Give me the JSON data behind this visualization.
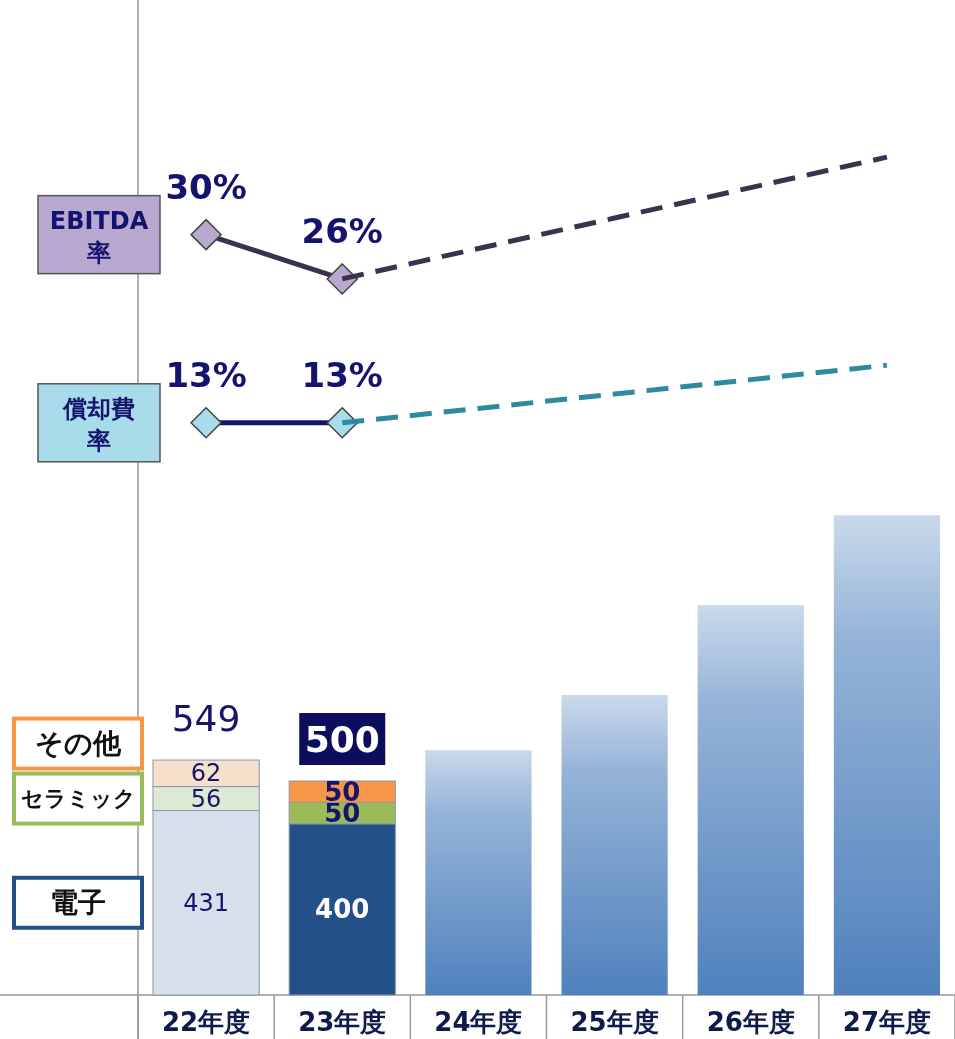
{
  "chart_data": {
    "type": "bar",
    "stacked": true,
    "categories": [
      "22年度",
      "23年度",
      "24年度",
      "25年度",
      "26年度",
      "27年度"
    ],
    "ylim": [
      0,
      2325
    ],
    "y2lim": [
      -38.7,
      51.2
    ],
    "series": [
      {
        "name": "電子",
        "values": [
          431,
          400,
          null,
          null,
          null,
          null
        ],
        "colors": [
          "#d6dfea",
          "#24508a",
          null,
          null,
          null,
          null
        ],
        "value_labels": [
          "431",
          "400",
          null,
          null,
          null,
          null
        ]
      },
      {
        "name": "セラミック",
        "values": [
          56,
          50,
          null,
          null,
          null,
          null
        ],
        "colors": [
          "#dfe8d2",
          "#9bbb59",
          null,
          null,
          null,
          null
        ],
        "value_labels": [
          "56",
          "50",
          null,
          null,
          null,
          null
        ]
      },
      {
        "name": "その他",
        "values": [
          62,
          50,
          null,
          null,
          null,
          null
        ],
        "colors": [
          "#f5e0cc",
          "#f79646",
          null,
          null,
          null,
          null
        ],
        "value_labels": [
          "62",
          "50",
          null,
          null,
          null,
          null
        ]
      },
      {
        "values": [
          null,
          null,
          572,
          701,
          911,
          1121
        ],
        "color": "#4f81bd"
      },
      {
        "name": "EBITDA率",
        "type": "line",
        "axis": "y2",
        "marker": "diamond",
        "line_style": "solid",
        "color": "#3d3150",
        "colors": [
          "#b9a9d0",
          "#b9a9d0",
          null,
          null,
          null,
          null
        ],
        "values": [
          30,
          26,
          null,
          null,
          null,
          null
        ],
        "value_labels": [
          "30%",
          "26%",
          null,
          null,
          null,
          null
        ]
      },
      {
        "type": "line",
        "axis": "y2",
        "marker": "none",
        "line_style": "dashed",
        "color": "#3d3150",
        "values": [
          null,
          26,
          28.75,
          31.5,
          34.25,
          37
        ]
      },
      {
        "name": "償却費率",
        "type": "line",
        "axis": "y2",
        "marker": "diamond",
        "line_style": "solid",
        "color": "#14146e",
        "colors": [
          "#a8dcea",
          "#a8dcea",
          null,
          null,
          null,
          null
        ],
        "values": [
          13,
          13,
          null,
          null,
          null,
          null
        ],
        "value_labels": [
          "13%",
          "13%",
          null,
          null,
          null,
          null
        ]
      },
      {
        "type": "line",
        "axis": "y2",
        "marker": "none",
        "line_style": "dashed",
        "color": "#2e8aa0",
        "values": [
          null,
          13,
          14.3,
          15.6,
          16.9,
          18.2
        ]
      }
    ],
    "totals": [
      "549",
      "500",
      null,
      null,
      null,
      null
    ]
  }
}
